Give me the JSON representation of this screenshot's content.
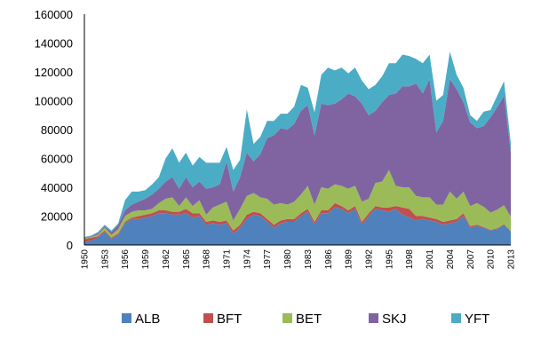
{
  "chart_data": {
    "type": "area",
    "stacked": true,
    "title": "",
    "xlabel": "",
    "ylabel": "",
    "ylim": [
      0,
      160000
    ],
    "yticks": [
      0,
      20000,
      40000,
      60000,
      80000,
      100000,
      120000,
      140000,
      160000
    ],
    "xticks": [
      "1950",
      "1953",
      "1956",
      "1959",
      "1962",
      "1965",
      "1968",
      "1971",
      "1974",
      "1977",
      "1980",
      "1983",
      "1986",
      "1989",
      "1992",
      "1995",
      "1998",
      "2001",
      "2004",
      "2007",
      "2010",
      "2013"
    ],
    "legend_position": "bottom",
    "x": [
      1950,
      1951,
      1952,
      1953,
      1954,
      1955,
      1956,
      1957,
      1958,
      1959,
      1960,
      1961,
      1962,
      1963,
      1964,
      1965,
      1966,
      1967,
      1968,
      1969,
      1970,
      1971,
      1972,
      1973,
      1974,
      1975,
      1976,
      1977,
      1978,
      1979,
      1980,
      1981,
      1982,
      1983,
      1984,
      1985,
      1986,
      1987,
      1988,
      1989,
      1990,
      1991,
      1992,
      1993,
      1994,
      1995,
      1996,
      1997,
      1998,
      1999,
      2000,
      2001,
      2002,
      2003,
      2004,
      2005,
      2006,
      2007,
      2008,
      2009,
      2010,
      2011,
      2012,
      2013
    ],
    "series": [
      {
        "name": "ALB",
        "color": "#4f81bd",
        "values": [
          2000,
          3000,
          5000,
          9000,
          4000,
          7000,
          15000,
          18000,
          18000,
          19000,
          20000,
          22000,
          22000,
          21000,
          21000,
          22000,
          19000,
          20000,
          14000,
          15000,
          14000,
          15000,
          8000,
          12000,
          18000,
          21000,
          20000,
          16000,
          12000,
          15000,
          16000,
          16000,
          20000,
          23000,
          14000,
          22000,
          22000,
          26000,
          25000,
          22000,
          25000,
          14000,
          20000,
          25000,
          24000,
          23000,
          25000,
          21000,
          19000,
          17000,
          18000,
          17000,
          16000,
          14000,
          15000,
          16000,
          20000,
          12000,
          13000,
          12000,
          10000,
          11000,
          14000,
          9000
        ]
      },
      {
        "name": "BFT",
        "color": "#c0504d",
        "values": [
          2000,
          2000,
          1000,
          1000,
          1000,
          1000,
          1000,
          1000,
          2000,
          2000,
          2000,
          2000,
          2000,
          2000,
          2000,
          3000,
          3000,
          2000,
          2000,
          2000,
          2000,
          2000,
          2000,
          2000,
          3000,
          2000,
          2000,
          2000,
          2000,
          2000,
          2000,
          2000,
          2000,
          2000,
          2000,
          2000,
          2000,
          3000,
          2000,
          2000,
          2000,
          2000,
          2000,
          2000,
          2000,
          3000,
          2000,
          5000,
          6000,
          3000,
          2000,
          2000,
          2000,
          2000,
          2000,
          2000,
          2000,
          1000,
          1000,
          500,
          500,
          500,
          500,
          500
        ]
      },
      {
        "name": "BET",
        "color": "#9bbb59",
        "values": [
          500,
          500,
          1000,
          2000,
          2000,
          3000,
          4000,
          4000,
          4000,
          3000,
          3000,
          5000,
          8000,
          10000,
          4000,
          8000,
          5000,
          9000,
          5000,
          9000,
          12000,
          13000,
          7000,
          11000,
          13000,
          13000,
          11000,
          14000,
          14000,
          12000,
          10000,
          12000,
          13000,
          16000,
          12000,
          16000,
          15000,
          13000,
          14000,
          15000,
          14000,
          14000,
          10000,
          16000,
          18000,
          26000,
          14000,
          14000,
          15000,
          14000,
          13000,
          14000,
          10000,
          12000,
          20000,
          14000,
          15000,
          14000,
          15000,
          14000,
          12000,
          13000,
          13000,
          10000
        ]
      },
      {
        "name": "SKJ",
        "color": "#8064a2",
        "values": [
          500,
          500,
          1000,
          1000,
          2000,
          3000,
          4000,
          5000,
          6000,
          8000,
          10000,
          10000,
          12000,
          14000,
          12000,
          14000,
          13000,
          13000,
          18000,
          14000,
          14000,
          28000,
          20000,
          22000,
          30000,
          22000,
          30000,
          42000,
          48000,
          52000,
          52000,
          54000,
          58000,
          56000,
          48000,
          58000,
          58000,
          56000,
          60000,
          66000,
          62000,
          68000,
          58000,
          50000,
          55000,
          52000,
          64000,
          70000,
          70000,
          78000,
          72000,
          82000,
          50000,
          58000,
          78000,
          76000,
          62000,
          58000,
          52000,
          56000,
          66000,
          71000,
          76000,
          45000
        ]
      },
      {
        "name": "YFT",
        "color": "#4bacc6",
        "values": [
          500,
          500,
          1000,
          1000,
          1000,
          1000,
          7000,
          9000,
          7000,
          6000,
          7000,
          8000,
          16000,
          20000,
          18000,
          17000,
          15000,
          17000,
          18000,
          17000,
          15000,
          10000,
          15000,
          12000,
          30000,
          12000,
          12000,
          12000,
          10000,
          10000,
          11000,
          12000,
          18000,
          12000,
          16000,
          20000,
          26000,
          23000,
          22000,
          14000,
          20000,
          16000,
          18000,
          18000,
          18000,
          22000,
          21000,
          22000,
          21000,
          17000,
          21000,
          17000,
          22000,
          18000,
          19000,
          10000,
          10000,
          5000,
          5000,
          10000,
          5000,
          8000,
          10000,
          6000
        ]
      }
    ]
  }
}
